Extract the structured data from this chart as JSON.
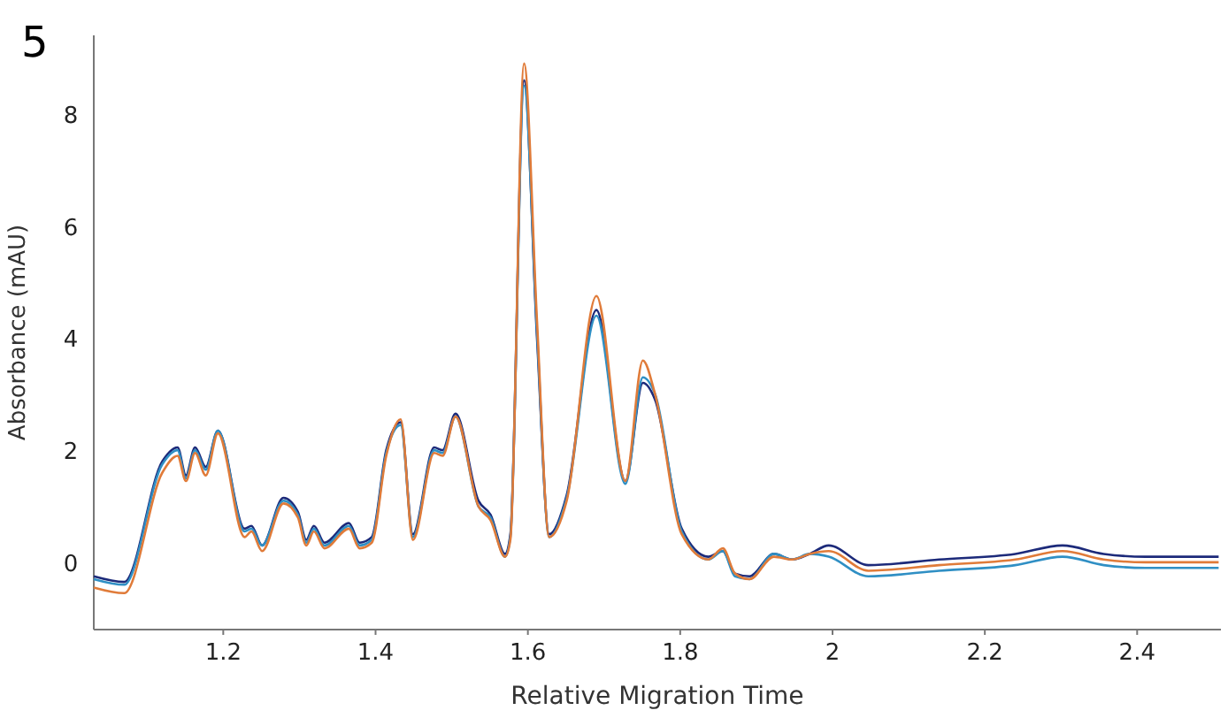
{
  "chart_data": {
    "type": "line",
    "title": "5",
    "xlabel": "Relative Migration Time",
    "ylabel": "Absorbance (mAU)",
    "xlim": [
      1.03,
      2.51
    ],
    "ylim": [
      -1.2,
      9.4
    ],
    "xticks": [
      1.2,
      1.4,
      1.6,
      1.8,
      2,
      2.2,
      2.4
    ],
    "yticks": [
      0,
      2,
      4,
      6,
      8
    ],
    "grid": false,
    "line_style": "solid",
    "marker": "none",
    "x": [
      1.03,
      1.07,
      1.12,
      1.14,
      1.151,
      1.163,
      1.177,
      1.193,
      1.228,
      1.237,
      1.251,
      1.279,
      1.298,
      1.309,
      1.319,
      1.333,
      1.365,
      1.379,
      1.395,
      1.414,
      1.433,
      1.449,
      1.477,
      1.488,
      1.505,
      1.535,
      1.551,
      1.57,
      1.577,
      1.595,
      1.612,
      1.628,
      1.651,
      1.69,
      1.728,
      1.751,
      1.767,
      1.802,
      1.837,
      1.856,
      1.872,
      1.891,
      1.923,
      1.947,
      1.97,
      1.995,
      2.047,
      2.14,
      2.24,
      2.302,
      2.356,
      2.411,
      2.507
    ],
    "series": [
      {
        "color": "#1c2a7a",
        "values": [
          -0.25,
          -0.35,
          1.8,
          2.05,
          1.55,
          2.05,
          1.7,
          2.35,
          0.6,
          0.65,
          0.3,
          1.15,
          0.9,
          0.4,
          0.65,
          0.35,
          0.7,
          0.35,
          0.45,
          2.0,
          2.5,
          0.5,
          2.05,
          2.0,
          2.65,
          1.1,
          0.85,
          0.15,
          0.5,
          8.6,
          4.0,
          0.5,
          1.2,
          4.5,
          1.45,
          3.2,
          2.9,
          0.6,
          0.1,
          0.2,
          -0.2,
          -0.25,
          0.15,
          0.05,
          0.15,
          0.3,
          -0.05,
          0.05,
          0.15,
          0.3,
          0.15,
          0.1,
          0.1
        ]
      },
      {
        "color": "#2f8fc4",
        "values": [
          -0.3,
          -0.4,
          1.75,
          2.0,
          1.5,
          2.0,
          1.65,
          2.35,
          0.55,
          0.6,
          0.3,
          1.1,
          0.85,
          0.35,
          0.6,
          0.3,
          0.65,
          0.3,
          0.4,
          1.95,
          2.45,
          0.45,
          2.0,
          1.95,
          2.6,
          1.0,
          0.8,
          0.1,
          0.45,
          8.5,
          4.1,
          0.45,
          1.15,
          4.4,
          1.4,
          3.3,
          3.0,
          0.55,
          0.05,
          0.2,
          -0.25,
          -0.3,
          0.15,
          0.05,
          0.15,
          0.1,
          -0.25,
          -0.15,
          -0.05,
          0.1,
          -0.05,
          -0.1,
          -0.1
        ]
      },
      {
        "color": "#e07b39",
        "values": [
          -0.45,
          -0.55,
          1.6,
          1.9,
          1.45,
          1.95,
          1.55,
          2.3,
          0.45,
          0.55,
          0.2,
          1.05,
          0.8,
          0.3,
          0.55,
          0.25,
          0.6,
          0.25,
          0.35,
          1.9,
          2.55,
          0.4,
          1.95,
          1.9,
          2.6,
          1.0,
          0.75,
          0.1,
          0.4,
          8.9,
          4.3,
          0.45,
          1.1,
          4.75,
          1.45,
          3.6,
          3.0,
          0.5,
          0.05,
          0.25,
          -0.2,
          -0.3,
          0.1,
          0.05,
          0.15,
          0.2,
          -0.15,
          -0.05,
          0.05,
          0.2,
          0.05,
          0,
          0
        ]
      }
    ]
  }
}
